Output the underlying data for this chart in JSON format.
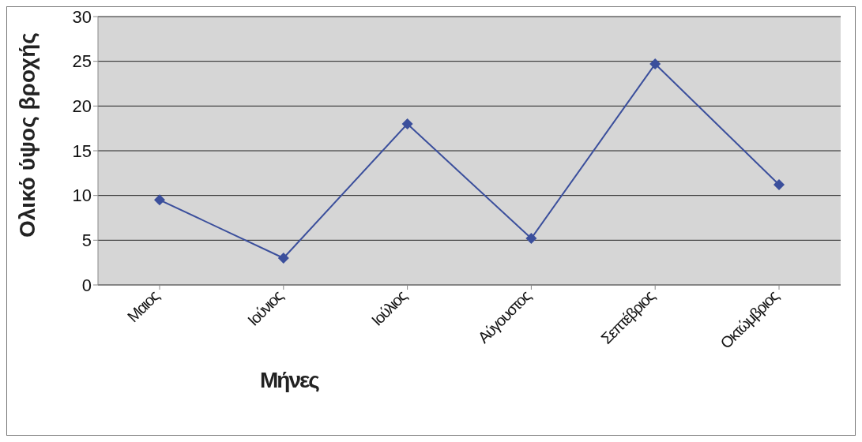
{
  "chart_data": {
    "type": "line",
    "xlabel": "Μήνες",
    "ylabel": "Ολικό ύψος βροχής",
    "categories": [
      "Μαιος",
      "Ιούνιος",
      "Ιούλιος",
      "Αύγουστος",
      "Σεπτέβριος",
      "Οκτώμβριος"
    ],
    "series": [
      {
        "color": "#3b4f9c",
        "values": [
          9.5,
          3,
          18,
          5.2,
          24.7,
          11.2
        ]
      }
    ],
    "ylim": [
      0,
      30
    ],
    "yticks": [
      0,
      5,
      10,
      15,
      20,
      25,
      30
    ],
    "grid": "y",
    "marker": "diamond"
  }
}
